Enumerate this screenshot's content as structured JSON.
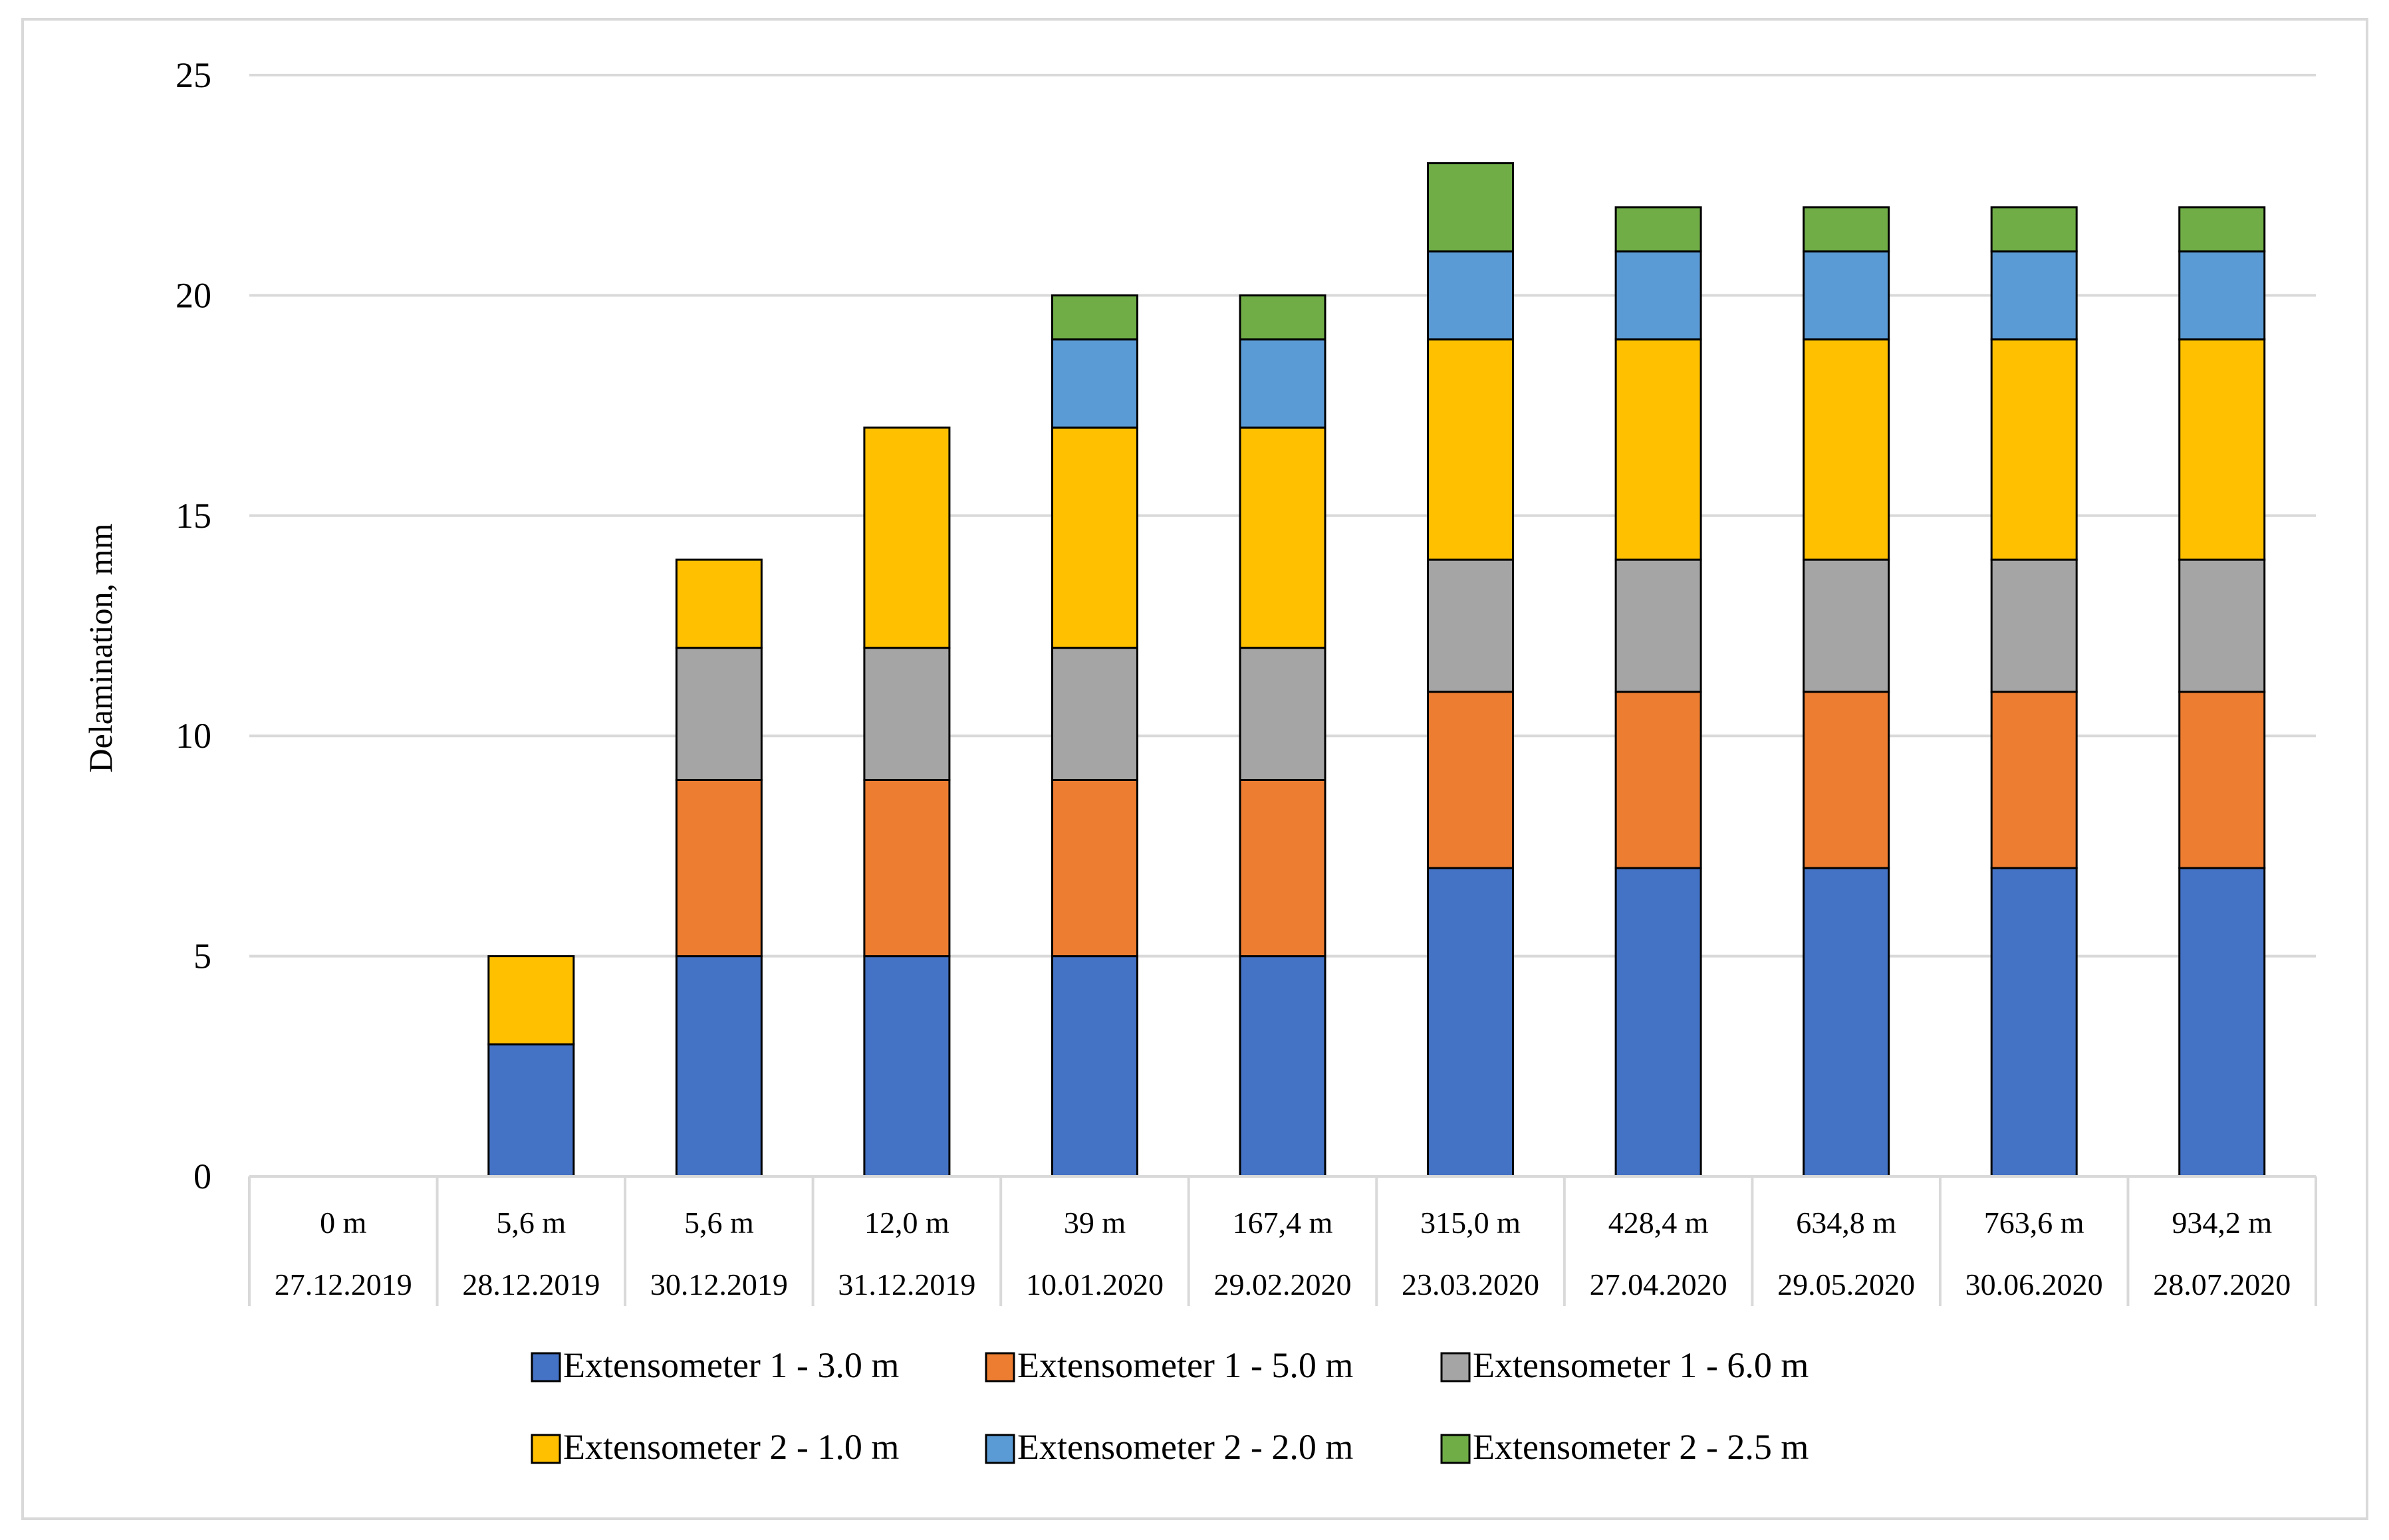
{
  "chart_data": {
    "type": "bar",
    "stacked": true,
    "title": "",
    "xlabel": "",
    "ylabel": "Delamination, mm",
    "ylim": [
      0,
      25
    ],
    "yticks": [
      0,
      5,
      10,
      15,
      20,
      25
    ],
    "grid": true,
    "legend_position": "bottom",
    "categories": [
      {
        "distance": "0 m",
        "date": "27.12.2019"
      },
      {
        "distance": "5,6 m",
        "date": "28.12.2019"
      },
      {
        "distance": "5,6 m",
        "date": "30.12.2019"
      },
      {
        "distance": "12,0 m",
        "date": "31.12.2019"
      },
      {
        "distance": "39 m",
        "date": "10.01.2020"
      },
      {
        "distance": "167,4 m",
        "date": "29.02.2020"
      },
      {
        "distance": "315,0 m",
        "date": "23.03.2020"
      },
      {
        "distance": "428,4 m",
        "date": "27.04.2020"
      },
      {
        "distance": "634,8 m",
        "date": "29.05.2020"
      },
      {
        "distance": "763,6 m",
        "date": "30.06.2020"
      },
      {
        "distance": "934,2 m",
        "date": "28.07.2020"
      }
    ],
    "series": [
      {
        "name": "Extensometer 1 - 3.0 m",
        "color": "#4472c4",
        "values": [
          0,
          3,
          5,
          5,
          5,
          5,
          7,
          7,
          7,
          7,
          7
        ]
      },
      {
        "name": "Extensometer 1 - 5.0 m",
        "color": "#ed7d31",
        "values": [
          0,
          0,
          4,
          4,
          4,
          4,
          4,
          4,
          4,
          4,
          4
        ]
      },
      {
        "name": "Extensometer 1 - 6.0 m",
        "color": "#a5a5a5",
        "values": [
          0,
          0,
          3,
          3,
          3,
          3,
          3,
          3,
          3,
          3,
          3
        ]
      },
      {
        "name": "Extensometer 2 - 1.0 m",
        "color": "#ffc000",
        "values": [
          0,
          2,
          2,
          5,
          5,
          5,
          5,
          5,
          5,
          5,
          5
        ]
      },
      {
        "name": "Extensometer 2 - 2.0 m",
        "color": "#5b9bd5",
        "values": [
          0,
          0,
          0,
          0,
          2,
          2,
          2,
          2,
          2,
          2,
          2
        ]
      },
      {
        "name": "Extensometer 2 - 2.5 m",
        "color": "#70ad47",
        "values": [
          0,
          0,
          0,
          0,
          1,
          1,
          2,
          1,
          1,
          1,
          1
        ]
      }
    ]
  },
  "colors": {
    "gridline": "#d9d9d9",
    "frame": "#d9d9d9",
    "bar_outline": "#000000",
    "text": "#000000"
  }
}
